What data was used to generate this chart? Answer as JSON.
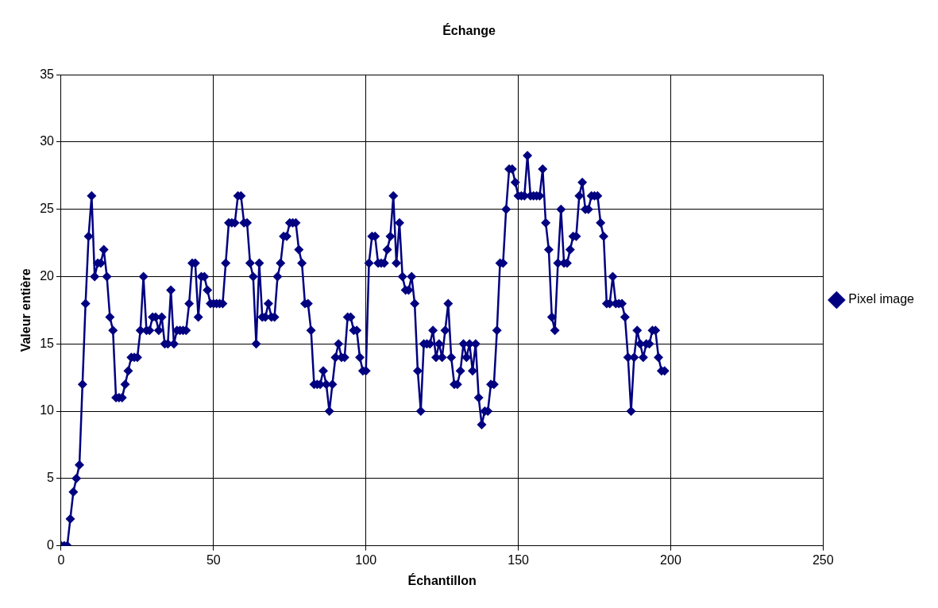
{
  "chart_data": {
    "type": "line",
    "title": "Échange",
    "xlabel": "Échantillon",
    "ylabel": "Valeur entière",
    "x": [
      0,
      1,
      2,
      3,
      4,
      5,
      6,
      7,
      8,
      9,
      10,
      11,
      12,
      13,
      14,
      15,
      16,
      17,
      18,
      19,
      20,
      21,
      22,
      23,
      24,
      25,
      26,
      27,
      28,
      29,
      30,
      31,
      32,
      33,
      34,
      35,
      36,
      37,
      38,
      39,
      40,
      41,
      42,
      43,
      44,
      45,
      46,
      47,
      48,
      49,
      50,
      51,
      52,
      53,
      54,
      55,
      56,
      57,
      58,
      59,
      60,
      61,
      62,
      63,
      64,
      65,
      66,
      67,
      68,
      69,
      70,
      71,
      72,
      73,
      74,
      75,
      76,
      77,
      78,
      79,
      80,
      81,
      82,
      83,
      84,
      85,
      86,
      87,
      88,
      89,
      90,
      91,
      92,
      93,
      94,
      95,
      96,
      97,
      98,
      99,
      100,
      101,
      102,
      103,
      104,
      105,
      106,
      107,
      108,
      109,
      110,
      111,
      112,
      113,
      114,
      115,
      116,
      117,
      118,
      119,
      120,
      121,
      122,
      123,
      124,
      125,
      126,
      127,
      128,
      129,
      130,
      131,
      132,
      133,
      134,
      135,
      136,
      137,
      138,
      139,
      140,
      141,
      142,
      143,
      144,
      145,
      146,
      147,
      148,
      149,
      150,
      151,
      152,
      153,
      154,
      155,
      156,
      157,
      158,
      159,
      160,
      161,
      162,
      163,
      164,
      165,
      166,
      167,
      168,
      169,
      170,
      171,
      172,
      173,
      174,
      175,
      176,
      177,
      178,
      179,
      180,
      181,
      182,
      183,
      184,
      185,
      186,
      187,
      188,
      189,
      190,
      191,
      192,
      193,
      194,
      195,
      196,
      197,
      198
    ],
    "series": [
      {
        "name": "Pixel image",
        "color": "#000080",
        "values": [
          0,
          0,
          0,
          2,
          4,
          5,
          6,
          12,
          18,
          23,
          26,
          20,
          21,
          21,
          22,
          20,
          17,
          16,
          11,
          11,
          11,
          12,
          13,
          14,
          14,
          14,
          16,
          20,
          16,
          16,
          17,
          17,
          16,
          17,
          15,
          15,
          19,
          15,
          16,
          16,
          16,
          16,
          18,
          21,
          21,
          17,
          20,
          20,
          19,
          18,
          18,
          18,
          18,
          18,
          21,
          24,
          24,
          24,
          26,
          26,
          24,
          24,
          21,
          20,
          15,
          21,
          17,
          17,
          18,
          17,
          17,
          20,
          21,
          23,
          23,
          24,
          24,
          24,
          22,
          21,
          18,
          18,
          16,
          12,
          12,
          12,
          13,
          12,
          10,
          12,
          14,
          15,
          14,
          14,
          17,
          17,
          16,
          16,
          14,
          13,
          13,
          21,
          23,
          23,
          21,
          21,
          21,
          22,
          23,
          26,
          21,
          24,
          20,
          19,
          19,
          20,
          18,
          13,
          10,
          15,
          15,
          15,
          16,
          14,
          15,
          14,
          16,
          18,
          14,
          12,
          12,
          13,
          15,
          14,
          15,
          13,
          15,
          11,
          9,
          10,
          10,
          12,
          12,
          16,
          21,
          21,
          25,
          28,
          28,
          27,
          26,
          26,
          26,
          29,
          26,
          26,
          26,
          26,
          28,
          24,
          22,
          17,
          16,
          21,
          25,
          21,
          21,
          22,
          23,
          23,
          26,
          27,
          25,
          25,
          26,
          26,
          26,
          24,
          23,
          18,
          18,
          20,
          18,
          18,
          18,
          17,
          14,
          10,
          14,
          16,
          15,
          14,
          15,
          15,
          16,
          16,
          14,
          13,
          13
        ]
      }
    ],
    "xlim": [
      0,
      250
    ],
    "xticks": [
      0,
      50,
      100,
      150,
      200,
      250
    ],
    "ylim": [
      0,
      35
    ],
    "yticks": [
      0,
      5,
      10,
      15,
      20,
      25,
      30,
      35
    ],
    "grid": true,
    "legend": "right",
    "marker": "diamond",
    "line_style": "solid"
  }
}
